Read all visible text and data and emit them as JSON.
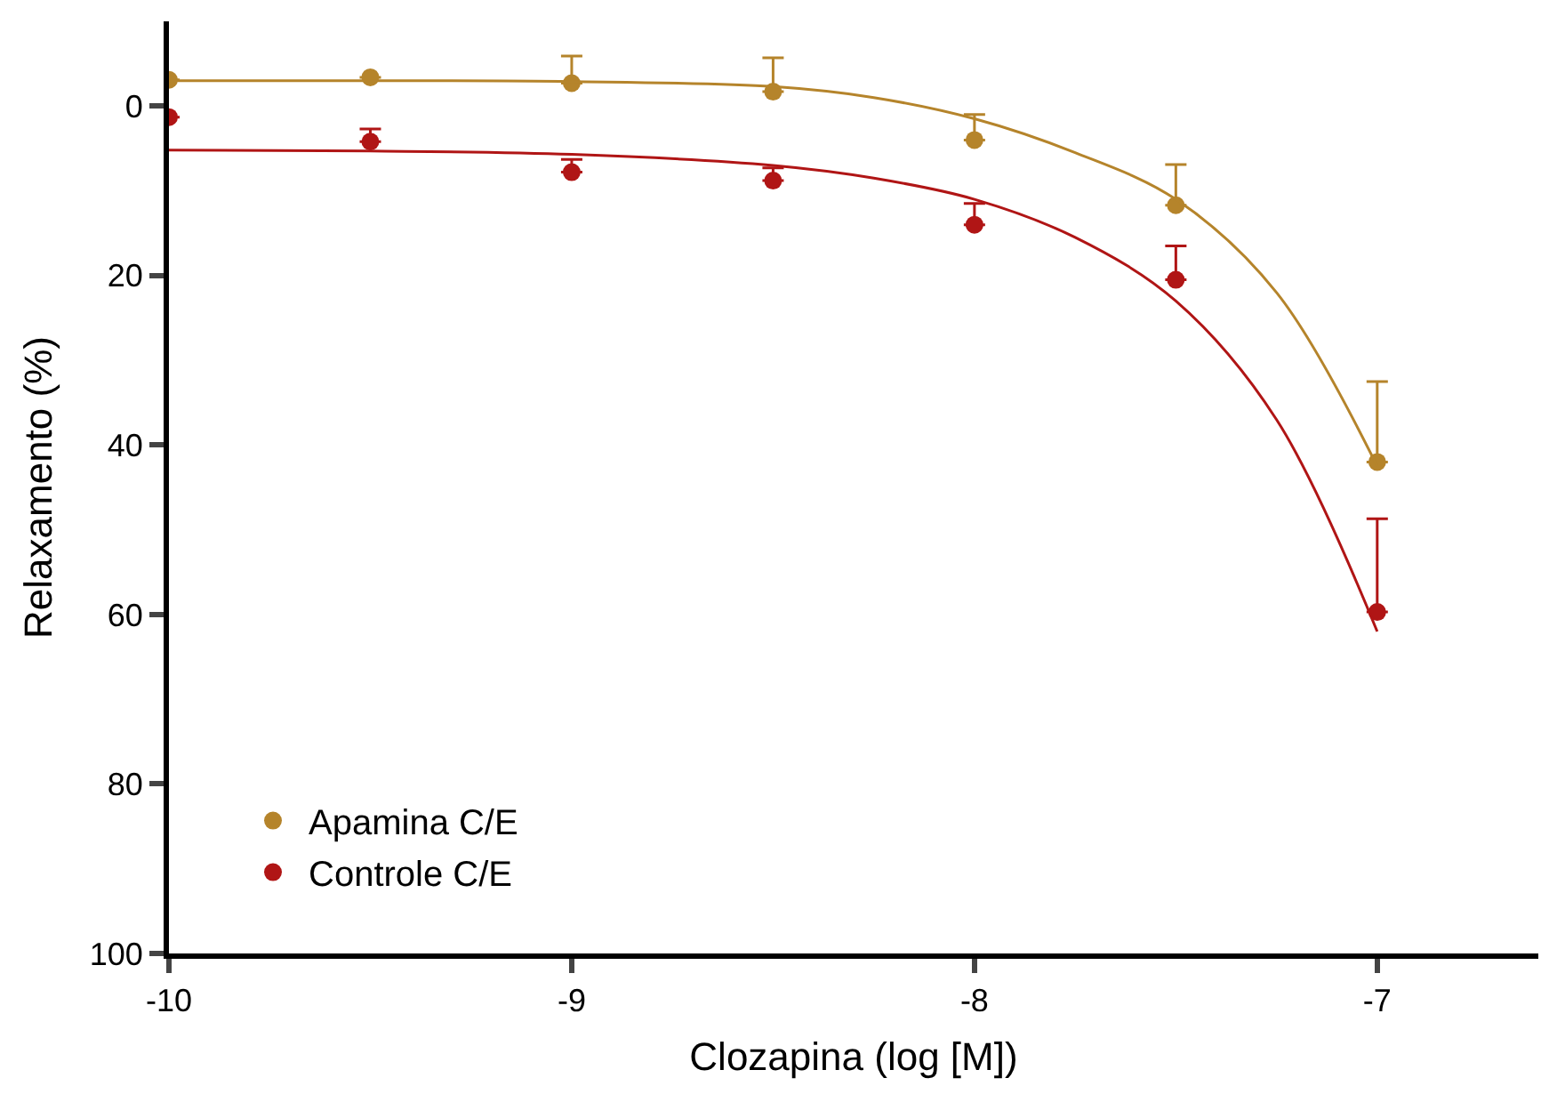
{
  "chart_data": {
    "type": "scatter",
    "xlabel": "Clozapina (log [M])",
    "ylabel": "Relaxamento (%)",
    "xlim": [
      -10,
      -6.6
    ],
    "xticks": [
      -10,
      -9,
      -8,
      -7
    ],
    "ylim": [
      100,
      -10
    ],
    "yticks": [
      0,
      20,
      40,
      60,
      80,
      100
    ],
    "legend": "bottom left",
    "marker": "circle",
    "series": [
      {
        "name": "Apamina C/E",
        "color": "#b5842b",
        "x": [
          -10,
          -9.5,
          -9,
          -8.5,
          -8,
          -7.5,
          -7
        ],
        "values": [
          -3.1,
          -3.4,
          -2.7,
          -1.7,
          4,
          11.7,
          42
        ],
        "errors": [
          null,
          null,
          [
            -5.9,
            -2.7
          ],
          [
            -5.7,
            -1.7
          ],
          [
            1,
            4
          ],
          [
            6.9,
            11.7
          ],
          [
            32.5,
            42
          ]
        ]
      },
      {
        "name": "Controle C/E",
        "color": "#b01515",
        "x": [
          -10,
          -9.5,
          -9,
          -8.5,
          -8,
          -7.5,
          -7
        ],
        "values": [
          1.3,
          4.2,
          7.8,
          8.8,
          14,
          20.5,
          59.7
        ],
        "errors": [
          null,
          [
            2.7,
            4.2
          ],
          [
            6.3,
            7.8
          ],
          [
            7.3,
            8.8
          ],
          [
            11.5,
            14
          ],
          [
            16.5,
            20.5
          ],
          [
            48.7,
            59.7
          ]
        ]
      },
      {
        "type": "line",
        "color": "#b5842b",
        "marker": "none",
        "x": [
          -10,
          -9.5,
          -9,
          -8.5,
          -8.25,
          -8,
          -7.75,
          -7.5,
          -7.25,
          -7
        ],
        "values": [
          -3,
          -3,
          -2.9,
          -2.3,
          -1,
          1.5,
          5.5,
          11,
          22,
          42.5
        ]
      },
      {
        "type": "line",
        "color": "#b01515",
        "marker": "none",
        "x": [
          -10,
          -9.5,
          -9,
          -8.5,
          -8.25,
          -8,
          -7.75,
          -7.5,
          -7.25,
          -7
        ],
        "values": [
          5.2,
          5.3,
          5.7,
          7,
          8.5,
          11,
          15.5,
          23,
          37,
          62
        ]
      }
    ]
  }
}
